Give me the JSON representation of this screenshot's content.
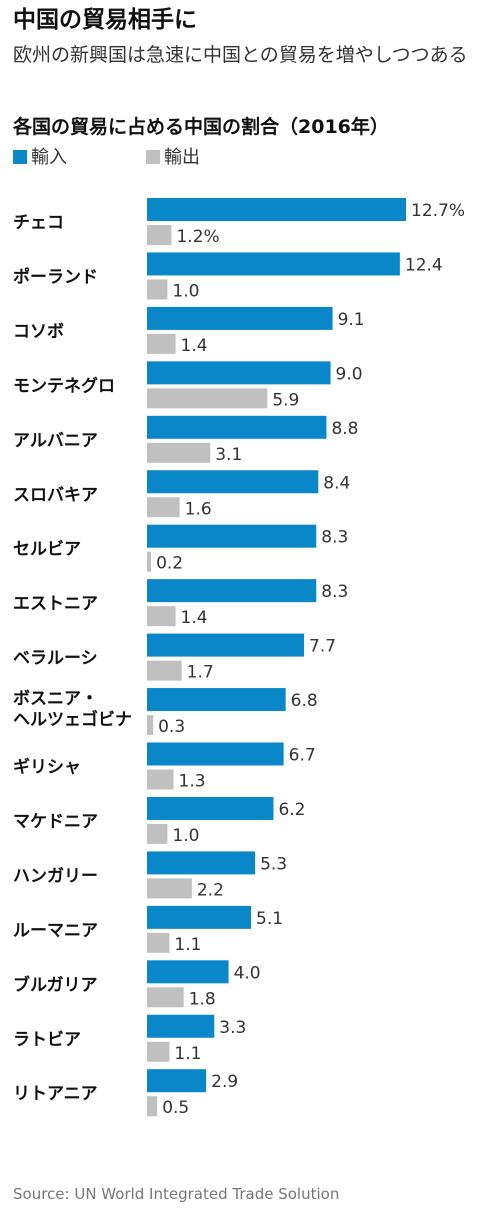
{
  "title": "中国の貿易相手に",
  "subtitle": "欧州の新興国は急速に中国との貿易を増やしつつある",
  "chart_data": {
    "type": "bar",
    "orientation": "horizontal",
    "title": "各国の貿易に占める中国の割合（2016年）",
    "unit": "%",
    "categories": [
      "チェコ",
      "ポーランド",
      "コソボ",
      "モンテネグロ",
      "アルバニア",
      "スロバキア",
      "セルビア",
      "エストニア",
      "ベラルーシ",
      "ボスニア・ヘルツェゴビナ",
      "ギリシャ",
      "マケドニア",
      "ハンガリー",
      "ルーマニア",
      "ブルガリア",
      "ラトビア",
      "リトアニア"
    ],
    "category_lines": [
      [
        "チェコ"
      ],
      [
        "ポーランド"
      ],
      [
        "コソボ"
      ],
      [
        "モンテネグロ"
      ],
      [
        "アルバニア"
      ],
      [
        "スロバキア"
      ],
      [
        "セルビア"
      ],
      [
        "エストニア"
      ],
      [
        "ベラルーシ"
      ],
      [
        "ボスニア・",
        "ヘルツェゴビナ"
      ],
      [
        "ギリシャ"
      ],
      [
        "マケドニア"
      ],
      [
        "ハンガリー"
      ],
      [
        "ルーマニア"
      ],
      [
        "ブルガリア"
      ],
      [
        "ラトビア"
      ],
      [
        "リトアニア"
      ]
    ],
    "series": [
      {
        "name": "輸入",
        "color": "#0a87c8",
        "values": [
          12.7,
          12.4,
          9.1,
          9.0,
          8.8,
          8.4,
          8.3,
          8.3,
          7.7,
          6.8,
          6.7,
          6.2,
          5.3,
          5.1,
          4.0,
          3.3,
          2.9
        ],
        "labels": [
          "12.7%",
          "12.4",
          "9.1",
          "9.0",
          "8.8",
          "8.4",
          "8.3",
          "8.3",
          "7.7",
          "6.8",
          "6.7",
          "6.2",
          "5.3",
          "5.1",
          "4.0",
          "3.3",
          "2.9"
        ]
      },
      {
        "name": "輸出",
        "color": "#c0c0c0",
        "values": [
          1.2,
          1.0,
          1.4,
          5.9,
          3.1,
          1.6,
          0.2,
          1.4,
          1.7,
          0.3,
          1.3,
          1.0,
          2.2,
          1.1,
          1.8,
          1.1,
          0.5
        ],
        "labels": [
          "1.2%",
          "1.0",
          "1.4",
          "5.9",
          "3.1",
          "1.6",
          "0.2",
          "1.4",
          "1.7",
          "0.3",
          "1.3",
          "1.0",
          "2.2",
          "1.1",
          "1.8",
          "1.1",
          "0.5"
        ]
      }
    ],
    "xlim": [
      0,
      12.7
    ],
    "grid": false,
    "legend": "top-left"
  },
  "source": "Source: UN World Integrated Trade Solution"
}
